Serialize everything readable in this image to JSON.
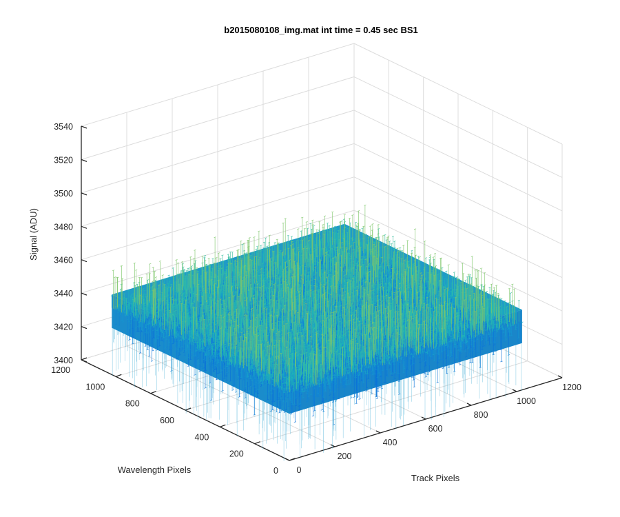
{
  "chart_data": {
    "type": "surface-3d",
    "title": "b2015080108_img.mat int time = 0.45 sec   BS1",
    "xlabel": "Track Pixels",
    "ylabel": "Wavelength Pixels",
    "zlabel": "Signal (ADU)",
    "xlim": [
      0,
      1200
    ],
    "ylim": [
      0,
      1200
    ],
    "zlim": [
      3400,
      3540
    ],
    "xticks": [
      "0",
      "200",
      "400",
      "600",
      "800",
      "1000",
      "1200"
    ],
    "yticks": [
      "0",
      "200",
      "400",
      "600",
      "800",
      "1000",
      "1200"
    ],
    "zticks": [
      "3400",
      "3420",
      "3440",
      "3460",
      "3480",
      "3500",
      "3520",
      "3540"
    ],
    "surface": {
      "x_range": [
        0,
        1024
      ],
      "y_range": [
        0,
        1024
      ],
      "mean_signal": 3440,
      "noise_range": [
        3415,
        3470
      ]
    },
    "grid": true,
    "colormap": "parula"
  }
}
